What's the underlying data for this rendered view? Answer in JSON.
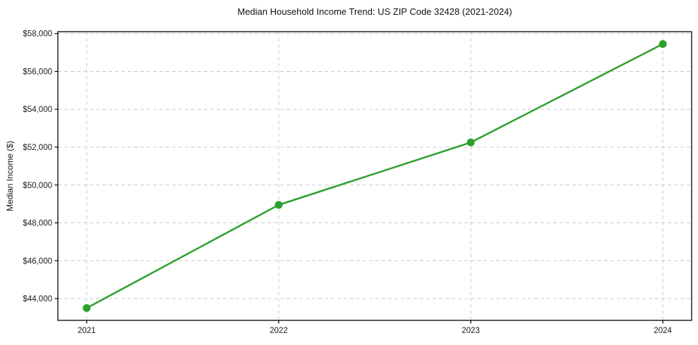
{
  "chart_data": {
    "type": "line",
    "title": "Median Household Income Trend: US ZIP Code 32428 (2021-2024)",
    "xlabel": "",
    "ylabel": "Median Income ($)",
    "categories": [
      "2021",
      "2022",
      "2023",
      "2024"
    ],
    "x": [
      2021,
      2022,
      2023,
      2024
    ],
    "series": [
      {
        "name": "Median Household Income",
        "values": [
          43500,
          48950,
          52250,
          57450
        ]
      }
    ],
    "yticks": [
      44000,
      46000,
      48000,
      50000,
      52000,
      54000,
      56000,
      58000
    ],
    "ytick_prefix": "$",
    "ylim": [
      42850,
      58100
    ],
    "xlim": [
      2020.85,
      2024.15
    ],
    "grid": true,
    "grid_style": "dashed",
    "legend": "none",
    "colors": {
      "line": "#2ca02c",
      "marker": "#2ca02c",
      "grid": "#c9c9c9",
      "spine": "#000000",
      "text": "#1a1a1a",
      "background": "#ffffff"
    },
    "marker_shape": "circle"
  }
}
